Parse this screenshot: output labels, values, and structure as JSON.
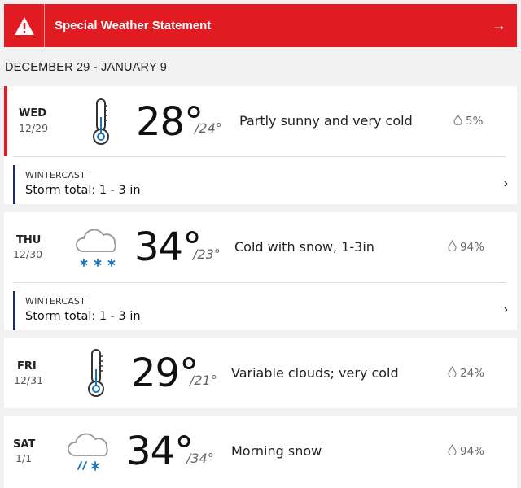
{
  "alert": {
    "title": "Special Weather Statement",
    "icon": "warning-icon",
    "arrow": "→",
    "color": "#e11b22"
  },
  "range": "DECEMBER 29 - JANUARY 9",
  "days": [
    {
      "day": "WED",
      "date": "12/29",
      "icon": "thermometer-icon",
      "hi": "28°",
      "lo": "/24°",
      "desc": "Partly sunny and very cold",
      "precip": "5%",
      "wintercast": {
        "label": "WINTERCAST",
        "text": "Storm total: 1 - 3 in"
      }
    },
    {
      "day": "THU",
      "date": "12/30",
      "icon": "snow-cloud-icon",
      "hi": "34°",
      "lo": "/23°",
      "desc": "Cold with snow, 1-3in",
      "precip": "94%",
      "wintercast": {
        "label": "WINTERCAST",
        "text": "Storm total: 1 - 3 in"
      }
    },
    {
      "day": "FRI",
      "date": "12/31",
      "icon": "thermometer-icon",
      "hi": "29°",
      "lo": "/21°",
      "desc": "Variable clouds; very cold",
      "precip": "24%"
    },
    {
      "day": "SAT",
      "date": "1/1",
      "icon": "mixed-snow-cloud-icon",
      "hi": "34°",
      "lo": "/34°",
      "desc": "Morning snow",
      "precip": "94%"
    }
  ],
  "chevron": "›"
}
